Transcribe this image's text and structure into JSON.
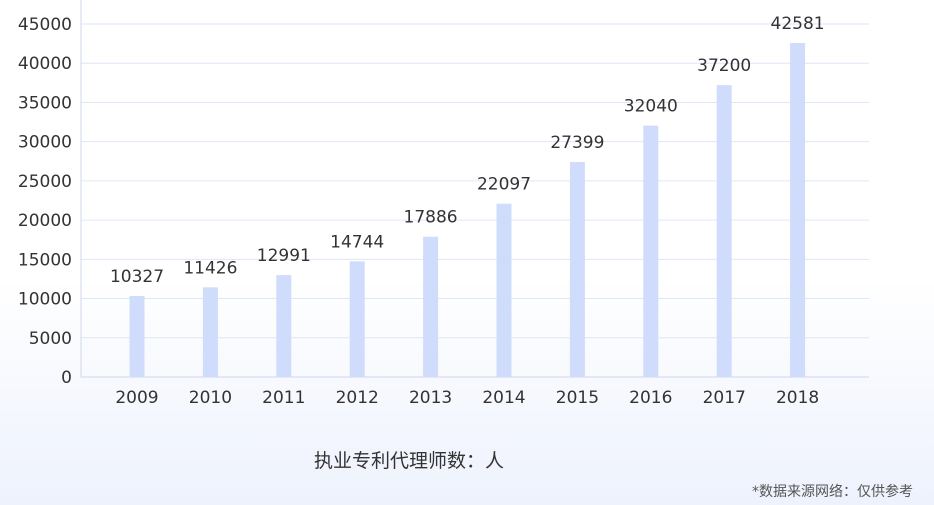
{
  "chart_data": {
    "type": "bar",
    "categories": [
      "2009",
      "2010",
      "2011",
      "2012",
      "2013",
      "2014",
      "2015",
      "2016",
      "2017",
      "2018"
    ],
    "values": [
      10327,
      11426,
      12991,
      14744,
      17886,
      22097,
      27399,
      32040,
      37200,
      42581
    ],
    "ylim": [
      0,
      45000
    ],
    "yticks": [
      0,
      5000,
      10000,
      15000,
      20000,
      25000,
      30000,
      35000,
      40000,
      45000
    ],
    "grid": true,
    "bar_color": "#cfdcfb",
    "legend": "执业专利代理师数：人"
  },
  "source_note": "*数据来源网络：仅供参考"
}
